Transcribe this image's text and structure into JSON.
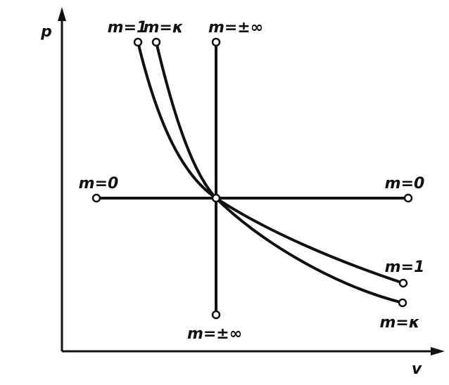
{
  "axes": {
    "y_label": "p",
    "x_label": "v"
  },
  "labels": {
    "top_isotherm": "m=1",
    "top_adiabat": "m=κ",
    "top_isochore": "m=±∞",
    "left_isobar": "m=0",
    "right_isobar": "m=0",
    "right_isotherm": "m=1",
    "right_adiabat": "m=κ",
    "bottom_isochore": "m=±∞"
  }
}
